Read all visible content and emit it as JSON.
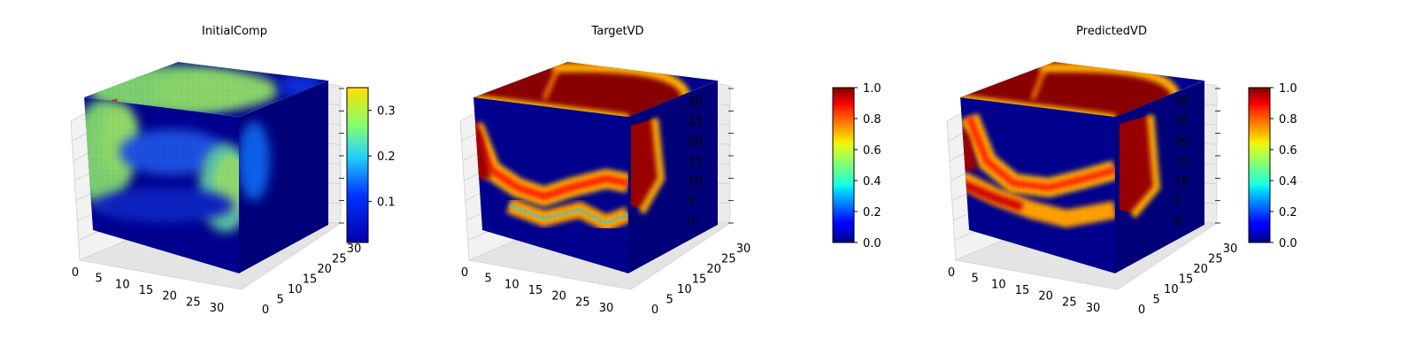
{
  "colors": {
    "colormap": "jet",
    "background": "#ffffff",
    "grid_line": "#c8c8c8"
  },
  "chart_data": [
    {
      "type": "heatmap",
      "subtype": "3d-voxel",
      "title": "InitialComp",
      "xlabel": "",
      "ylabel": "",
      "zlabel": "",
      "x_ticks": [
        "0",
        "5",
        "10",
        "15",
        "20",
        "25",
        "30"
      ],
      "y_ticks": [
        "0",
        "5",
        "10",
        "15",
        "20",
        "25",
        "30"
      ],
      "z_ticks": [],
      "xlim": [
        0,
        32
      ],
      "ylim": [
        0,
        32
      ],
      "zlim": [
        0,
        32
      ],
      "colorbar": {
        "range": [
          0.01,
          0.35
        ],
        "ticks": [
          "0.1",
          "0.2",
          "0.3"
        ]
      },
      "grid": true
    },
    {
      "type": "heatmap",
      "subtype": "3d-voxel",
      "title": "TargetVD",
      "xlabel": "",
      "ylabel": "",
      "zlabel": "",
      "x_ticks": [
        "0",
        "5",
        "10",
        "15",
        "20",
        "25",
        "30"
      ],
      "y_ticks": [
        "0",
        "5",
        "10",
        "15",
        "20",
        "25",
        "30"
      ],
      "z_ticks": [
        "0",
        "5",
        "10",
        "15",
        "20",
        "25",
        "30"
      ],
      "xlim": [
        0,
        32
      ],
      "ylim": [
        0,
        32
      ],
      "zlim": [
        0,
        32
      ],
      "colorbar": {
        "range": [
          0.0,
          1.0
        ],
        "ticks": [
          "0.0",
          "0.2",
          "0.4",
          "0.6",
          "0.8",
          "1.0"
        ]
      },
      "grid": true
    },
    {
      "type": "heatmap",
      "subtype": "3d-voxel",
      "title": "PredictedVD",
      "xlabel": "",
      "ylabel": "",
      "zlabel": "",
      "x_ticks": [
        "0",
        "5",
        "10",
        "15",
        "20",
        "25",
        "30"
      ],
      "y_ticks": [
        "0",
        "5",
        "10",
        "15",
        "20",
        "25",
        "30"
      ],
      "z_ticks": [
        "0",
        "5",
        "10",
        "15",
        "20",
        "25",
        "30"
      ],
      "xlim": [
        0,
        32
      ],
      "ylim": [
        0,
        32
      ],
      "zlim": [
        0,
        32
      ],
      "colorbar": {
        "range": [
          0.0,
          1.0
        ],
        "ticks": [
          "0.0",
          "0.2",
          "0.4",
          "0.6",
          "0.8",
          "1.0"
        ]
      },
      "grid": true
    }
  ]
}
